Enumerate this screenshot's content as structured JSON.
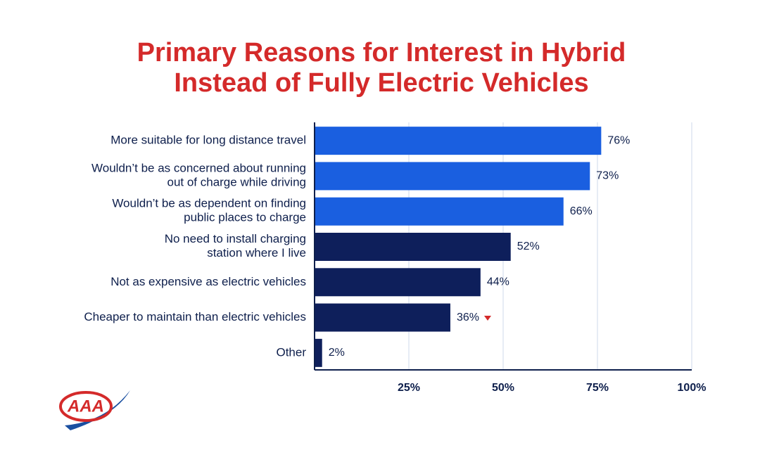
{
  "chart_data": {
    "type": "barh",
    "title": "Primary Reasons for Interest in Hybrid\nInstead of Fully Electric Vehicles",
    "categories": [
      "More suitable for long distance travel",
      "Wouldn’t be as concerned about running\nout of charge while driving",
      "Wouldn’t be as dependent on finding\npublic places to charge",
      "No need to install charging\nstation where I live",
      "Not as expensive as electric vehicles",
      "Cheaper to maintain than electric vehicles",
      "Other"
    ],
    "values": [
      76,
      73,
      66,
      52,
      44,
      36,
      2
    ],
    "value_labels": [
      "76%",
      "73%",
      "66%",
      "52%",
      "44%",
      "36%",
      "2%"
    ],
    "colors": [
      "#1a5fe0",
      "#1a5fe0",
      "#1a5fe0",
      "#0e1f5b",
      "#0e1f5b",
      "#0e1f5b",
      "#0e1f5b"
    ],
    "xlim": [
      0,
      100
    ],
    "xticks": [
      {
        "value": 25,
        "label": "25%"
      },
      {
        "value": 50,
        "label": "50%"
      },
      {
        "value": 75,
        "label": "75%"
      },
      {
        "value": 100,
        "label": "100%"
      }
    ],
    "grid": true
  },
  "logo": "AAA"
}
